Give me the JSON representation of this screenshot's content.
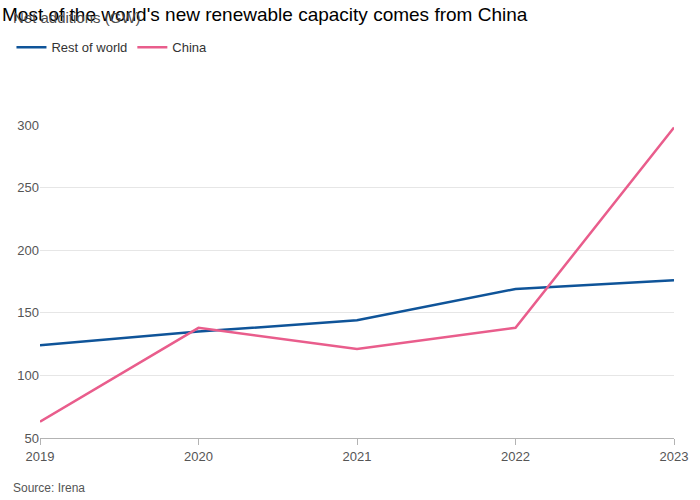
{
  "chart_data": {
    "type": "line",
    "title": "Most of the world's new renewable capacity comes from China",
    "subtitle": "Net additions (GW)",
    "source": "Source: Irena",
    "x": [
      2019,
      2020,
      2021,
      2022,
      2023
    ],
    "xlim": [
      2019,
      2023
    ],
    "xticks": [
      2019,
      2020,
      2021,
      2022,
      2023
    ],
    "ylim": [
      50,
      300
    ],
    "yticks": [
      50,
      100,
      150,
      200,
      250,
      300
    ],
    "grid": true,
    "legend": "top left",
    "series": [
      {
        "name": "Rest of world",
        "color": "#0f5499",
        "values": [
          124,
          135,
          144,
          169,
          176
        ]
      },
      {
        "name": "China",
        "color": "#e95d8c",
        "values": [
          63,
          138,
          121,
          138,
          298
        ]
      }
    ]
  }
}
